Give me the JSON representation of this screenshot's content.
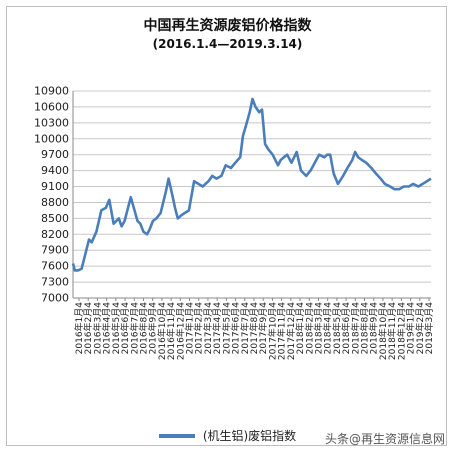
{
  "header": {
    "title": "中国再生资源废铝价格指数",
    "subtitle": "(2016.1.4—2019.3.14)"
  },
  "legend": {
    "label": "(机生铝)废铝指数",
    "color": "#4a7ebb"
  },
  "watermark": "头条@再生资源信息网",
  "chart_data": {
    "type": "line",
    "title": "中国再生资源废铝价格指数",
    "subtitle": "(2016.1.4—2019.3.14)",
    "xlabel": "",
    "ylabel": "",
    "ylim": [
      7000,
      10900
    ],
    "y_ticks": [
      7000,
      7300,
      7600,
      7900,
      8200,
      8500,
      8800,
      9100,
      9400,
      9700,
      10000,
      10300,
      10600,
      10900
    ],
    "grid": "horizontal",
    "legend_position": "bottom",
    "x_tick_labels": [
      "2016年1月4",
      "2016年2月4",
      "2016年3月4",
      "2016年4月4",
      "2016年5月4",
      "2016年6月4",
      "2016年7月4",
      "2016年8月4",
      "2016年9月4",
      "2016年10月4",
      "2016年11月4",
      "2016年12月4",
      "2017年1月4",
      "2017年2月4",
      "2017年3月4",
      "2017年4月4",
      "2017年5月4",
      "2017年6月4",
      "2017年7月4",
      "2017年8月4",
      "2017年9月4",
      "2017年10月4",
      "2017年11月4",
      "2017年12月4",
      "2018年1月4",
      "2018年2月4",
      "2018年3月4",
      "2018年4月4",
      "2018年5月4",
      "2018年6月4",
      "2018年7月4",
      "2018年8月4",
      "2018年9月4",
      "2018年10月4",
      "2018年11月4",
      "2018年12月4",
      "2019年1月4",
      "2019年2月4",
      "2019年3月4"
    ],
    "series": [
      {
        "name": "(机生铝)废铝指数",
        "color": "#4a7ebb",
        "x": [
          "2016-01-04",
          "2016-01-10",
          "2016-01-20",
          "2016-02-01",
          "2016-02-25",
          "2016-03-05",
          "2016-03-20",
          "2016-04-05",
          "2016-04-20",
          "2016-05-01",
          "2016-05-15",
          "2016-06-01",
          "2016-06-10",
          "2016-06-20",
          "2016-07-01",
          "2016-07-10",
          "2016-07-20",
          "2016-08-01",
          "2016-08-10",
          "2016-08-20",
          "2016-09-01",
          "2016-09-10",
          "2016-09-20",
          "2016-10-01",
          "2016-10-15",
          "2016-11-01",
          "2016-11-10",
          "2016-11-20",
          "2016-12-01",
          "2016-12-10",
          "2016-12-20",
          "2017-01-01",
          "2017-01-15",
          "2017-02-01",
          "2017-02-15",
          "2017-03-01",
          "2017-03-10",
          "2017-03-20",
          "2017-04-01",
          "2017-04-15",
          "2017-05-01",
          "2017-05-15",
          "2017-06-01",
          "2017-06-15",
          "2017-07-01",
          "2017-07-10",
          "2017-07-20",
          "2017-08-01",
          "2017-08-10",
          "2017-08-20",
          "2017-09-01",
          "2017-09-10",
          "2017-09-20",
          "2017-10-01",
          "2017-10-15",
          "2017-11-01",
          "2017-11-10",
          "2017-11-20",
          "2017-12-01",
          "2017-12-15",
          "2018-01-01",
          "2018-01-15",
          "2018-02-01",
          "2018-02-15",
          "2018-03-01",
          "2018-03-15",
          "2018-04-01",
          "2018-04-10",
          "2018-04-20",
          "2018-05-01",
          "2018-05-15",
          "2018-06-01",
          "2018-06-15",
          "2018-07-01",
          "2018-07-10",
          "2018-07-20",
          "2018-08-01",
          "2018-08-15",
          "2018-09-01",
          "2018-09-15",
          "2018-10-01",
          "2018-10-15",
          "2018-11-01",
          "2018-11-15",
          "2018-12-01",
          "2018-12-15",
          "2019-01-01",
          "2019-01-15",
          "2019-02-01",
          "2019-02-15",
          "2019-03-01",
          "2019-03-14"
        ],
        "values": [
          7650,
          7520,
          7520,
          7550,
          8100,
          8050,
          8250,
          8650,
          8700,
          8850,
          8400,
          8500,
          8350,
          8450,
          8700,
          8900,
          8700,
          8450,
          8400,
          8250,
          8200,
          8300,
          8450,
          8500,
          8600,
          9000,
          9250,
          9000,
          8700,
          8500,
          8550,
          8600,
          8650,
          9200,
          9150,
          9100,
          9150,
          9200,
          9300,
          9250,
          9300,
          9500,
          9450,
          9550,
          9650,
          10050,
          10250,
          10500,
          10750,
          10600,
          10500,
          10550,
          9900,
          9800,
          9700,
          9500,
          9600,
          9650,
          9700,
          9550,
          9750,
          9400,
          9300,
          9400,
          9550,
          9700,
          9650,
          9700,
          9700,
          9350,
          9150,
          9300,
          9450,
          9600,
          9750,
          9650,
          9600,
          9550,
          9450,
          9350,
          9250,
          9150,
          9100,
          9050,
          9050,
          9100,
          9100,
          9150,
          9100,
          9150,
          9200,
          9250
        ]
      }
    ]
  }
}
